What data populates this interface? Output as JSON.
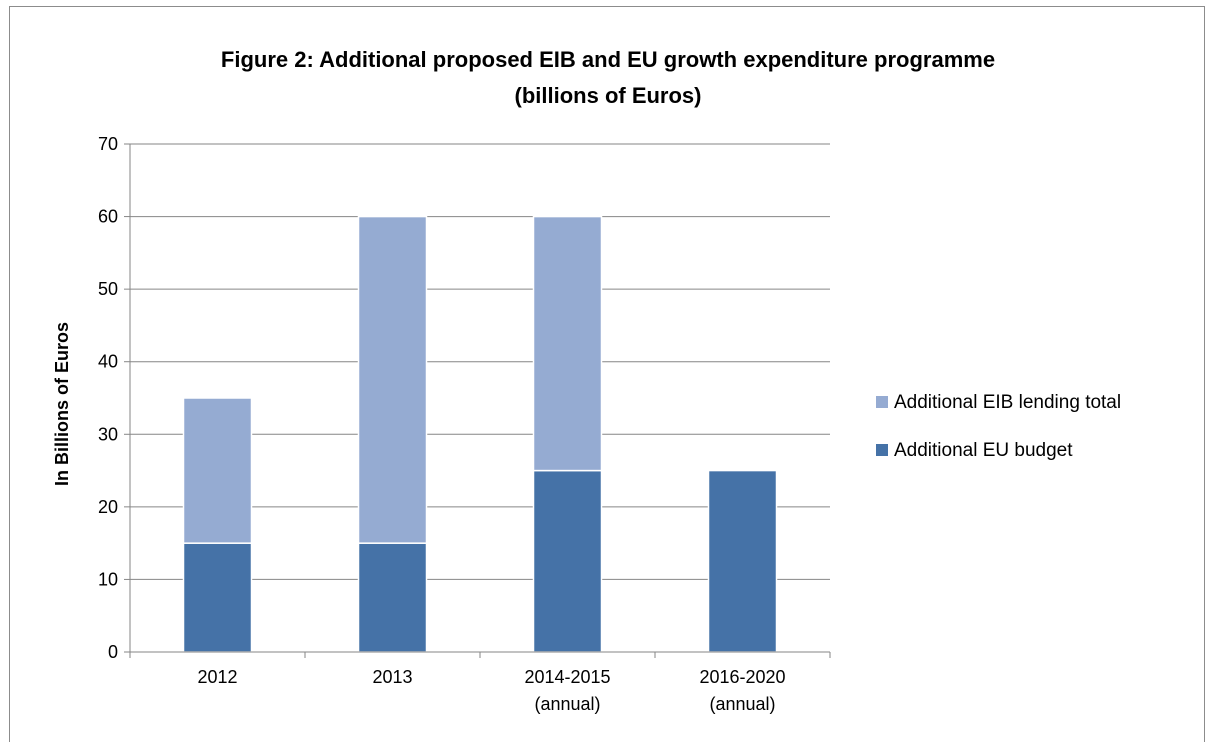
{
  "chart_data": {
    "type": "bar",
    "stacked": true,
    "title_lines": [
      "Figure 2: Additional proposed EIB and EU growth expenditure programme",
      "(billions of Euros)"
    ],
    "ylabel": "In Billions of  Euros",
    "xlabel": "",
    "ylim": [
      0,
      70
    ],
    "yticks": [
      0,
      10,
      20,
      30,
      40,
      50,
      60,
      70
    ],
    "grid": true,
    "categories": [
      [
        "2012"
      ],
      [
        "2013"
      ],
      [
        "2014-2015",
        "(annual)"
      ],
      [
        "2016-2020",
        "(annual)"
      ]
    ],
    "series": [
      {
        "name": "Additional EU budget",
        "values": [
          15,
          15,
          25,
          25
        ],
        "color": "#4572a7"
      },
      {
        "name": "Additional EIB lending total",
        "values": [
          20,
          45,
          35,
          0
        ],
        "color": "#95abd2"
      }
    ],
    "legend_position": "right",
    "legend_order": [
      1,
      0
    ]
  }
}
